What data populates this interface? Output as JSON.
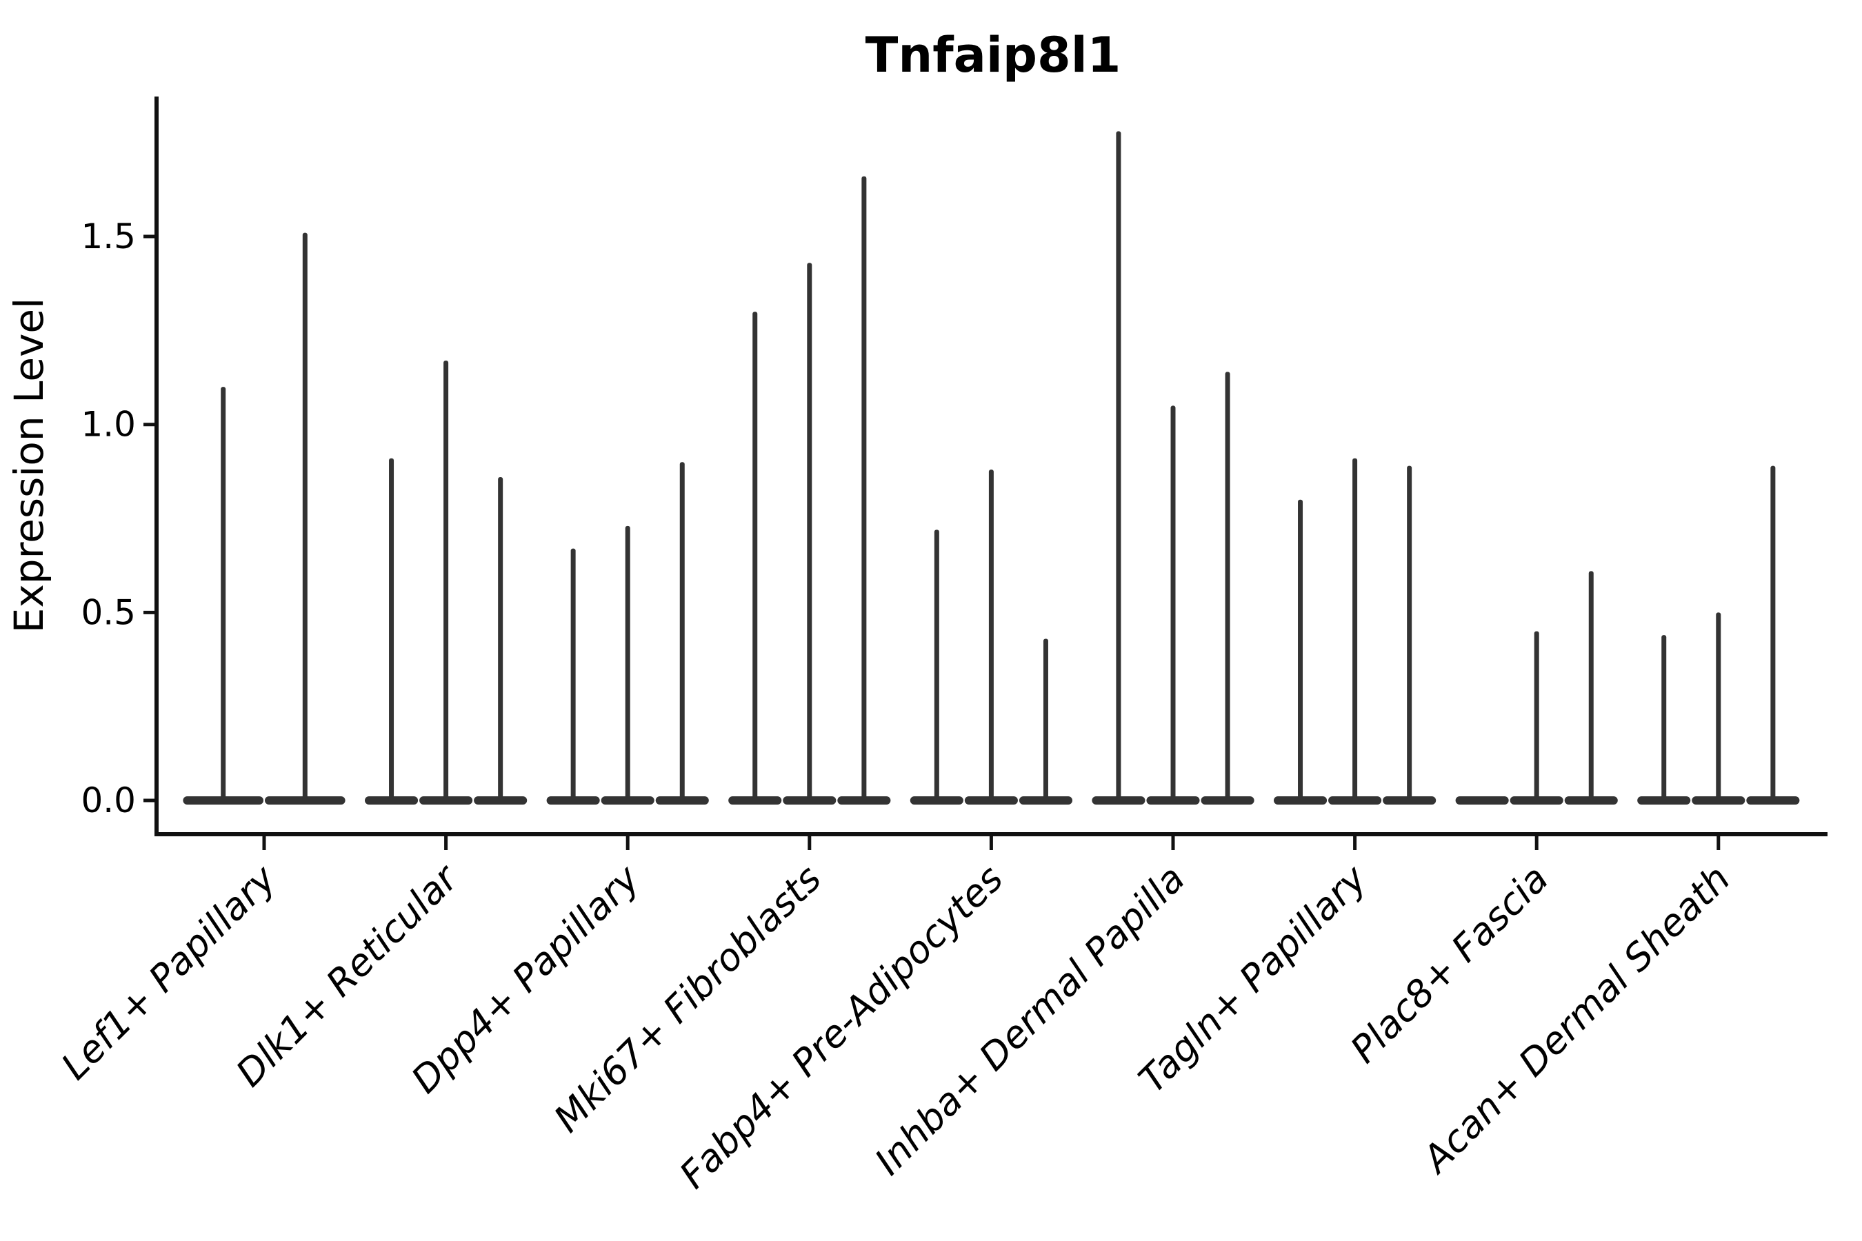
{
  "figure": {
    "background_color": "#ffffff",
    "violin_color": "#333333",
    "axis_color": "#111111",
    "text_color": "#000000"
  },
  "chart_data": {
    "type": "violin",
    "title": "Tnfaip8l1",
    "xlabel": "",
    "ylabel": "Expression Level",
    "y_tick_labels": [
      "0.0",
      "0.5",
      "1.0",
      "1.5"
    ],
    "ylim": [
      -0.09,
      1.87
    ],
    "grid": false,
    "legend": "none",
    "x_tick_rotation_deg": 45,
    "categories": [
      "Lef1+ Papillary",
      "Dlk1+ Reticular",
      "Dpp4+ Papillary",
      "Mki67+ Fibroblasts",
      "Fabp4+ Pre-Adipocytes",
      "Inhba+ Dermal Papilla",
      "Tagln+ Papillary",
      "Plac8+ Fascia",
      "Acan+ Dermal Sheath"
    ],
    "series": [
      {
        "category": "Lef1+ Papillary",
        "violin_max_expression": [
          1.1,
          1.51
        ]
      },
      {
        "category": "Dlk1+ Reticular",
        "violin_max_expression": [
          0.91,
          1.17,
          0.86
        ]
      },
      {
        "category": "Dpp4+ Papillary",
        "violin_max_expression": [
          0.67,
          0.73,
          0.9
        ]
      },
      {
        "category": "Mki67+ Fibroblasts",
        "violin_max_expression": [
          1.3,
          1.43,
          1.66
        ]
      },
      {
        "category": "Fabp4+ Pre-Adipocytes",
        "violin_max_expression": [
          0.72,
          0.88,
          0.43
        ]
      },
      {
        "category": "Inhba+ Dermal Papilla",
        "violin_max_expression": [
          1.78,
          1.05,
          1.14
        ]
      },
      {
        "category": "Tagln+ Papillary",
        "violin_max_expression": [
          0.8,
          0.91,
          0.89
        ]
      },
      {
        "category": "Plac8+ Fascia",
        "violin_max_expression": [
          0.0,
          0.45,
          0.61
        ]
      },
      {
        "category": "Acan+ Dermal Sheath",
        "violin_max_expression": [
          0.44,
          0.5,
          0.89
        ]
      }
    ],
    "description": "Each violin is a flat dense base at expression 0 with a thin spike up to its maximum expression value."
  }
}
